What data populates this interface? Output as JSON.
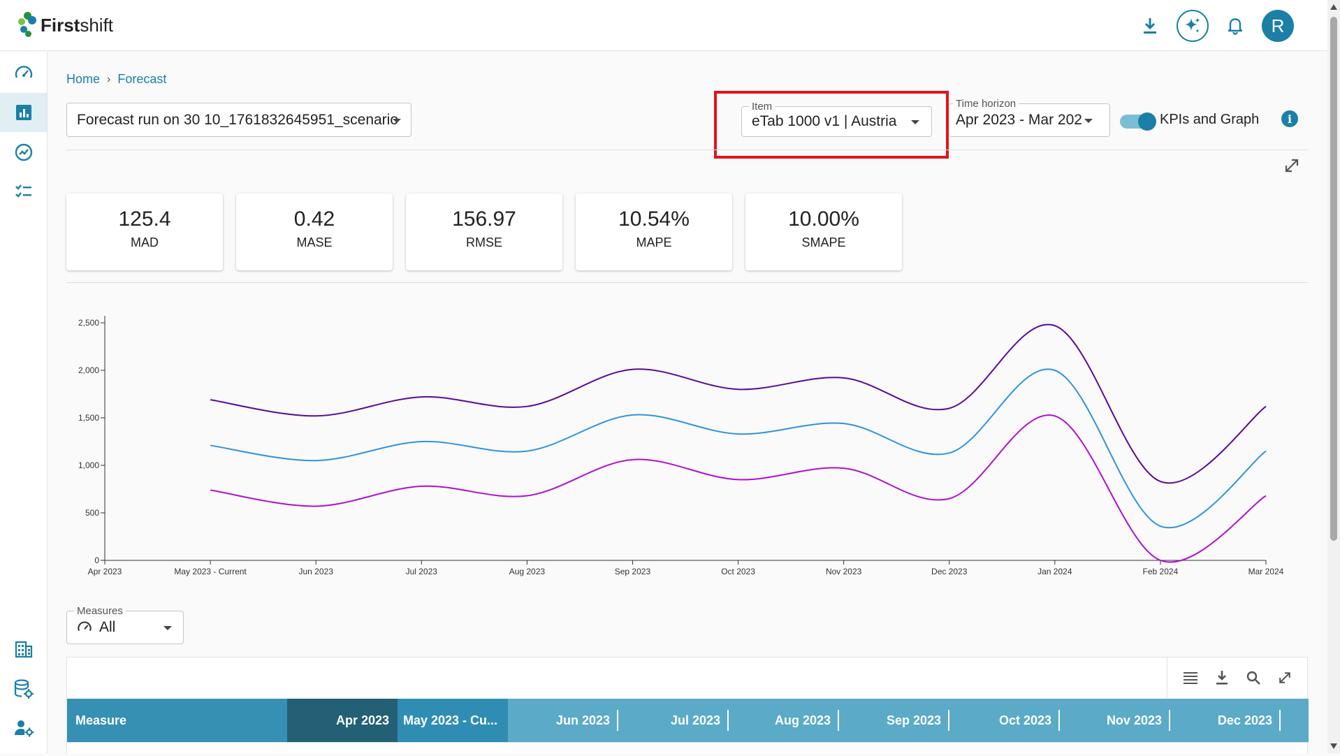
{
  "app": {
    "name_bold": "First",
    "name_rest": "shift"
  },
  "header": {
    "icons": [
      "download-icon",
      "ai-sparkle-icon",
      "bell-icon"
    ],
    "avatar_initial": "R"
  },
  "sidebar": {
    "items": [
      {
        "name": "dashboard",
        "icon": "speedometer-icon"
      },
      {
        "name": "forecast",
        "icon": "bar-chart-icon",
        "active": true
      },
      {
        "name": "trends",
        "icon": "trending-icon"
      },
      {
        "name": "tasks",
        "icon": "checklist-icon"
      },
      {
        "name": "organization",
        "icon": "building-icon"
      },
      {
        "name": "data-settings",
        "icon": "database-gear-icon"
      },
      {
        "name": "user-settings",
        "icon": "user-gear-icon"
      }
    ]
  },
  "breadcrumb": {
    "home": "Home",
    "separator": "›",
    "current": "Forecast"
  },
  "controls": {
    "forecast_run": "Forecast run on 30 10_1761832645951_scenario",
    "item_label": "Item",
    "item_value": "eTab 1000 v1 | Austria",
    "time_horizon_label": "Time horizon",
    "time_horizon_value": "Apr 2023 - Mar 202",
    "kpi_toggle_label": "KPIs and Graph"
  },
  "kpis": [
    {
      "value": "125.4",
      "label": "MAD"
    },
    {
      "value": "0.42",
      "label": "MASE"
    },
    {
      "value": "156.97",
      "label": "RMSE"
    },
    {
      "value": "10.54%",
      "label": "MAPE"
    },
    {
      "value": "10.00%",
      "label": "SMAPE"
    }
  ],
  "chart_data": {
    "type": "line",
    "x": [
      "Apr 2023",
      "May 2023 - Current",
      "Jun 2023",
      "Jul 2023",
      "Aug 2023",
      "Sep 2023",
      "Oct 2023",
      "Nov 2023",
      "Dec 2023",
      "Jan 2024",
      "Feb 2024",
      "Mar 2024"
    ],
    "y_ticks": [
      "0",
      "500",
      "1,000",
      "1,500",
      "2,000",
      "2,500"
    ],
    "ylim": [
      0,
      2500
    ],
    "series": [
      {
        "color": "#5a0a9a",
        "values": [
          null,
          1690,
          1520,
          1720,
          1620,
          2010,
          1800,
          1920,
          1600,
          2470,
          830,
          1620
        ]
      },
      {
        "color": "#2f93e0",
        "values": [
          null,
          1210,
          1050,
          1250,
          1150,
          1530,
          1330,
          1440,
          1130,
          2000,
          360,
          1150
        ]
      },
      {
        "color": "#b010d0",
        "values": [
          null,
          740,
          570,
          780,
          680,
          1060,
          850,
          970,
          650,
          1520,
          0,
          680
        ]
      }
    ],
    "grid": false,
    "legend": "none"
  },
  "measures": {
    "label": "Measures",
    "value": "All"
  },
  "table": {
    "tools": [
      "columns-icon",
      "download-icon",
      "search-icon",
      "expand-icon"
    ],
    "headers": [
      "Measure",
      "Apr 2023",
      "May 2023 - Cu...",
      "Jun 2023",
      "Jul 2023",
      "Aug 2023",
      "Sep 2023",
      "Oct 2023",
      "Nov 2023",
      "Dec 2023"
    ]
  }
}
